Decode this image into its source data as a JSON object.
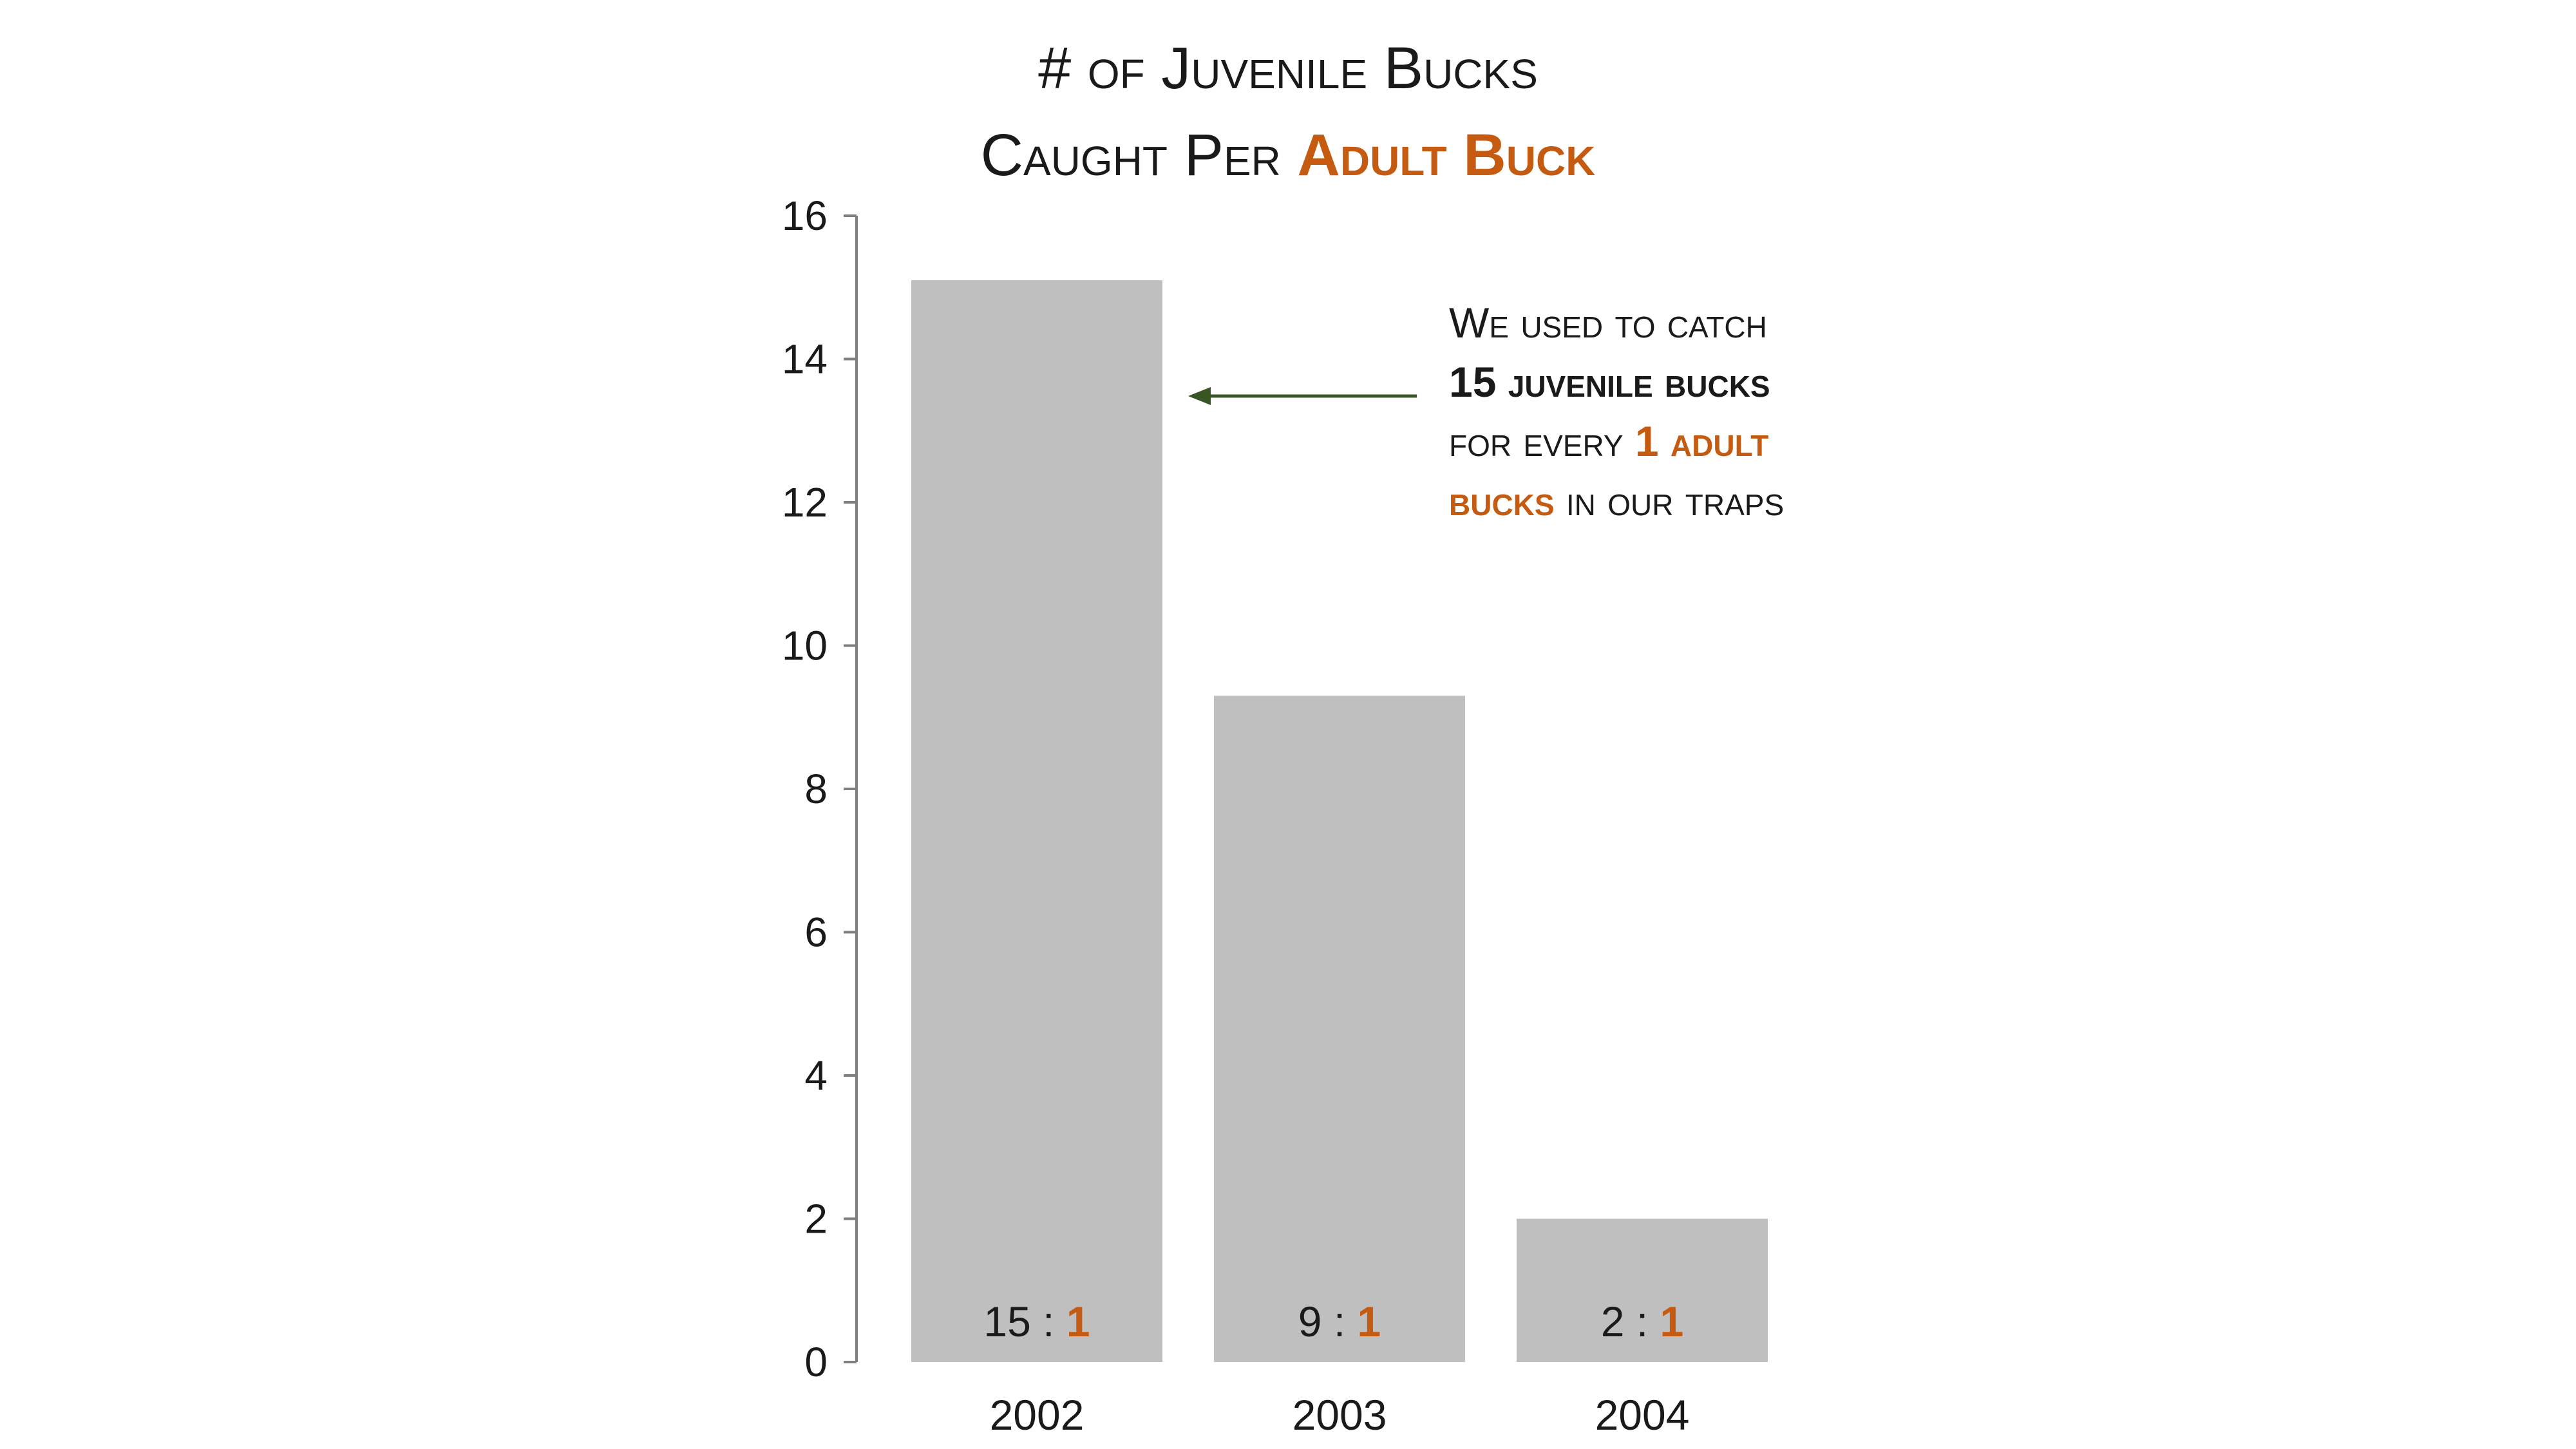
{
  "title": {
    "line1": "# of Juvenile Bucks",
    "line2_prefix": "Caught Per ",
    "line2_accent": "Adult Buck"
  },
  "annotation": {
    "line1": "We used to catch",
    "line2_bold": "15 juvenile bucks",
    "line3_prefix": "for every ",
    "line3_accent": "1 adult",
    "line4_accent": "bucks",
    "line4_suffix": " in our traps"
  },
  "colors": {
    "bar": "#bfbfbf",
    "accent": "#c55a11",
    "arrow": "#375623",
    "axis": "#808080",
    "text": "#1a1a1a"
  },
  "chart_data": {
    "type": "bar",
    "title": "# of Juvenile Bucks Caught Per Adult Buck",
    "xlabel": "",
    "ylabel": "",
    "categories": [
      "2002",
      "2003",
      "2004"
    ],
    "values": [
      15.1,
      9.3,
      2.0
    ],
    "ylim": [
      0,
      16
    ],
    "yticks": [
      "0",
      "2",
      "4",
      "6",
      "8",
      "10",
      "12",
      "14",
      "16"
    ],
    "data_labels": [
      {
        "left": "15 : ",
        "right": "1"
      },
      {
        "left": "9 : ",
        "right": "1"
      },
      {
        "left": "2 : ",
        "right": "1"
      }
    ],
    "grid": false,
    "legend": "none"
  }
}
